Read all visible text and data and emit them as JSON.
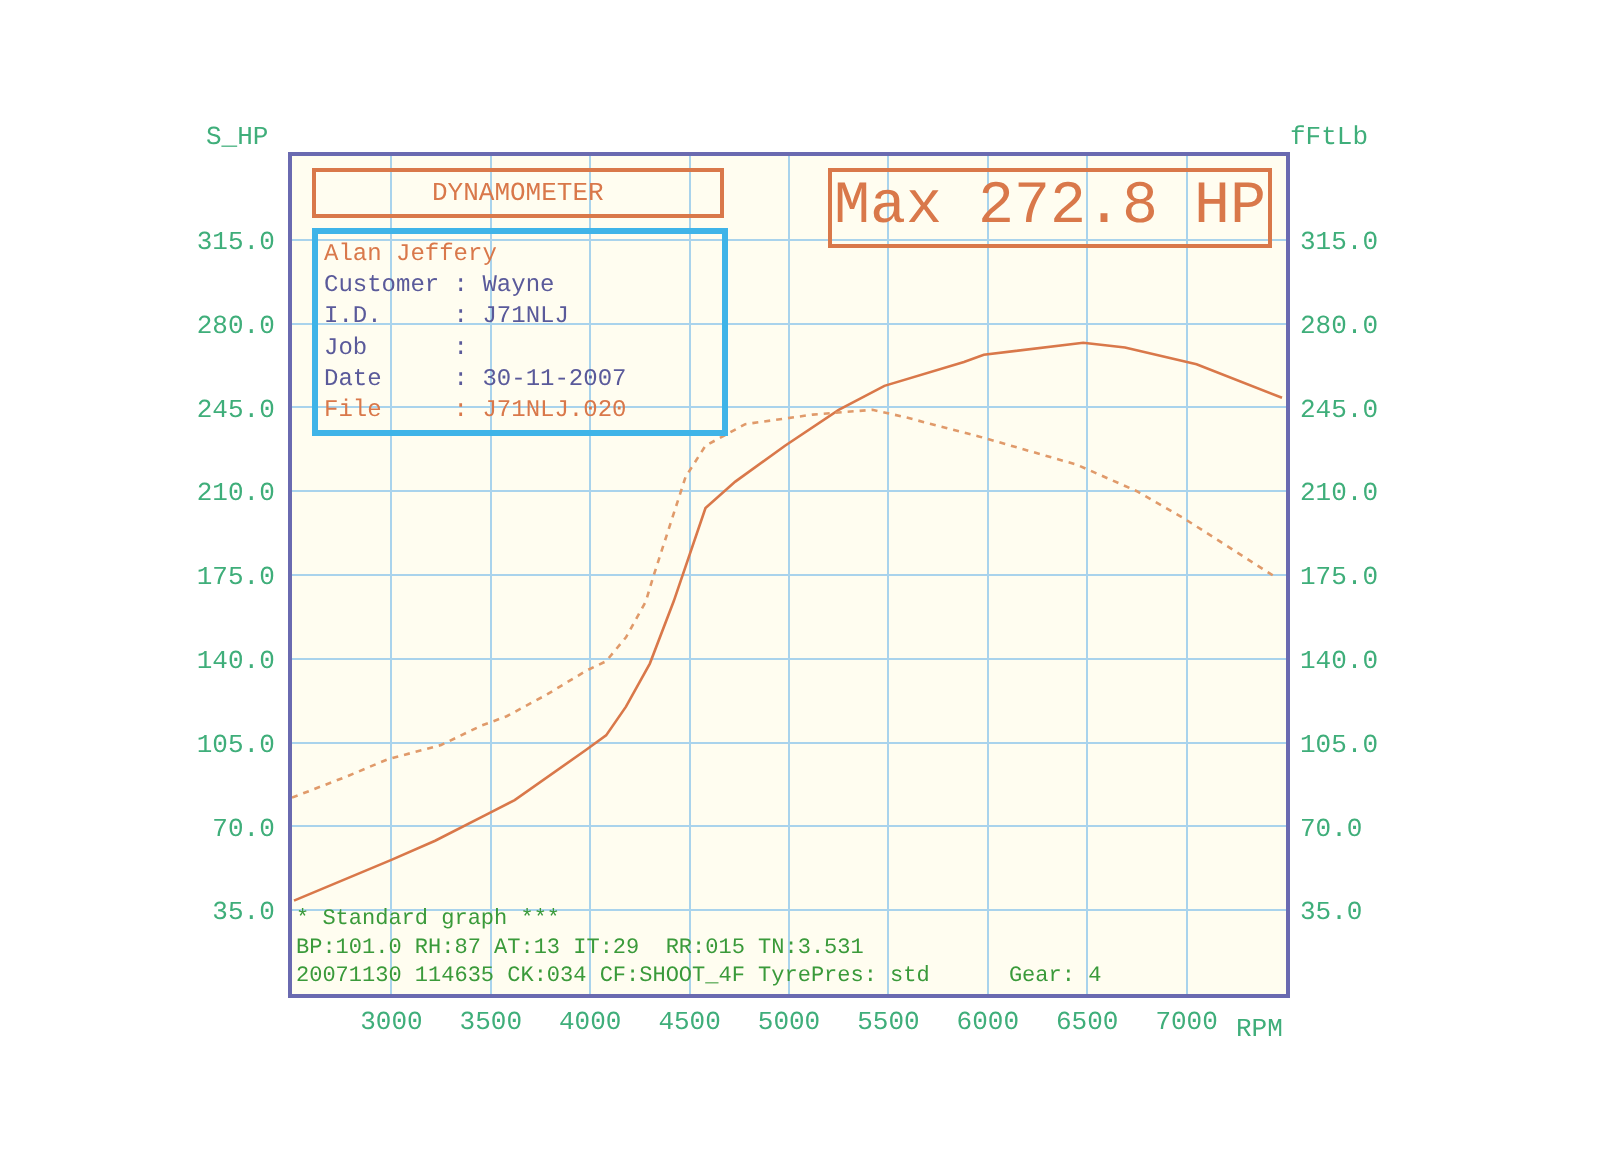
{
  "chart_data": {
    "type": "line",
    "title": "DYNAMOMETER",
    "xlabel": "RPM",
    "ylabel": "S_HP",
    "y2label": "fFtLb",
    "annotations": [
      "Max 272.8 HP",
      "Alan Jeffery",
      "Customer : Wayne",
      "I.D.     : J71NLJ",
      "Job      :",
      "Date     : 30-11-2007",
      "File     : J71NLJ.020",
      "* Standard graph ***",
      "BP:101.0 RH:87 AT:13 IT:29  RR:015 TN:3.531",
      "20071130 114635 CK:034 CF:SHOOT_4F TyrePres: std      Gear: 4"
    ],
    "series": [
      {
        "color": "#d9784a",
        "line_style": "solid",
        "x": [
          2510,
          3000,
          3220,
          3480,
          3620,
          3980,
          4080,
          4180,
          4300,
          4420,
          4580,
          4730,
          4980,
          5250,
          5480,
          5880,
          5980,
          6480,
          6690,
          7050,
          7480
        ],
        "values": [
          39,
          56,
          64,
          75,
          81,
          102,
          108,
          120,
          138,
          164,
          203,
          214,
          229,
          244,
          254,
          264,
          267,
          272,
          270,
          263,
          249
        ]
      },
      {
        "color": "#e09a6a",
        "line_style": "dotted",
        "axis": "y2",
        "x": [
          2500,
          2780,
          2980,
          3250,
          3450,
          3580,
          3780,
          3980,
          4080,
          4180,
          4280,
          4320,
          4480,
          4580,
          4780,
          5120,
          5420,
          5580,
          5950,
          6450,
          6750,
          6980,
          7450
        ],
        "values": [
          82,
          91,
          98,
          104,
          112,
          116,
          125,
          135,
          139,
          149,
          164,
          175,
          216,
          229,
          238,
          242,
          244,
          241,
          233,
          221,
          210,
          199,
          174
        ]
      }
    ],
    "xlim": [
      2500,
      7500
    ],
    "xticks": [
      3000,
      3500,
      4000,
      4500,
      5000,
      5500,
      6000,
      6500,
      7000
    ],
    "ylim": [
      0,
      350
    ],
    "yticks": [
      {
        "value": 35,
        "label": "35.0"
      },
      {
        "value": 70,
        "label": "70.0"
      },
      {
        "value": 105,
        "label": "105.0"
      },
      {
        "value": 140,
        "label": "140.0"
      },
      {
        "value": 175,
        "label": "175.0"
      },
      {
        "value": 210,
        "label": "210.0"
      },
      {
        "value": 245,
        "label": "245.0"
      },
      {
        "value": 280,
        "label": "280.0"
      },
      {
        "value": 315,
        "label": "315.0"
      }
    ],
    "y2lim": [
      0,
      350
    ],
    "y2ticks": [
      {
        "value": 35,
        "label": "35.0"
      },
      {
        "value": 70,
        "label": "70.0"
      },
      {
        "value": 105,
        "label": "105.0"
      },
      {
        "value": 140,
        "label": "140.0"
      },
      {
        "value": 175,
        "label": "175.0"
      },
      {
        "value": 210,
        "label": "210.0"
      },
      {
        "value": 245,
        "label": "245.0"
      },
      {
        "value": 280,
        "label": "280.0"
      },
      {
        "value": 315,
        "label": "315.0"
      }
    ],
    "grid": true,
    "marker": "none"
  }
}
